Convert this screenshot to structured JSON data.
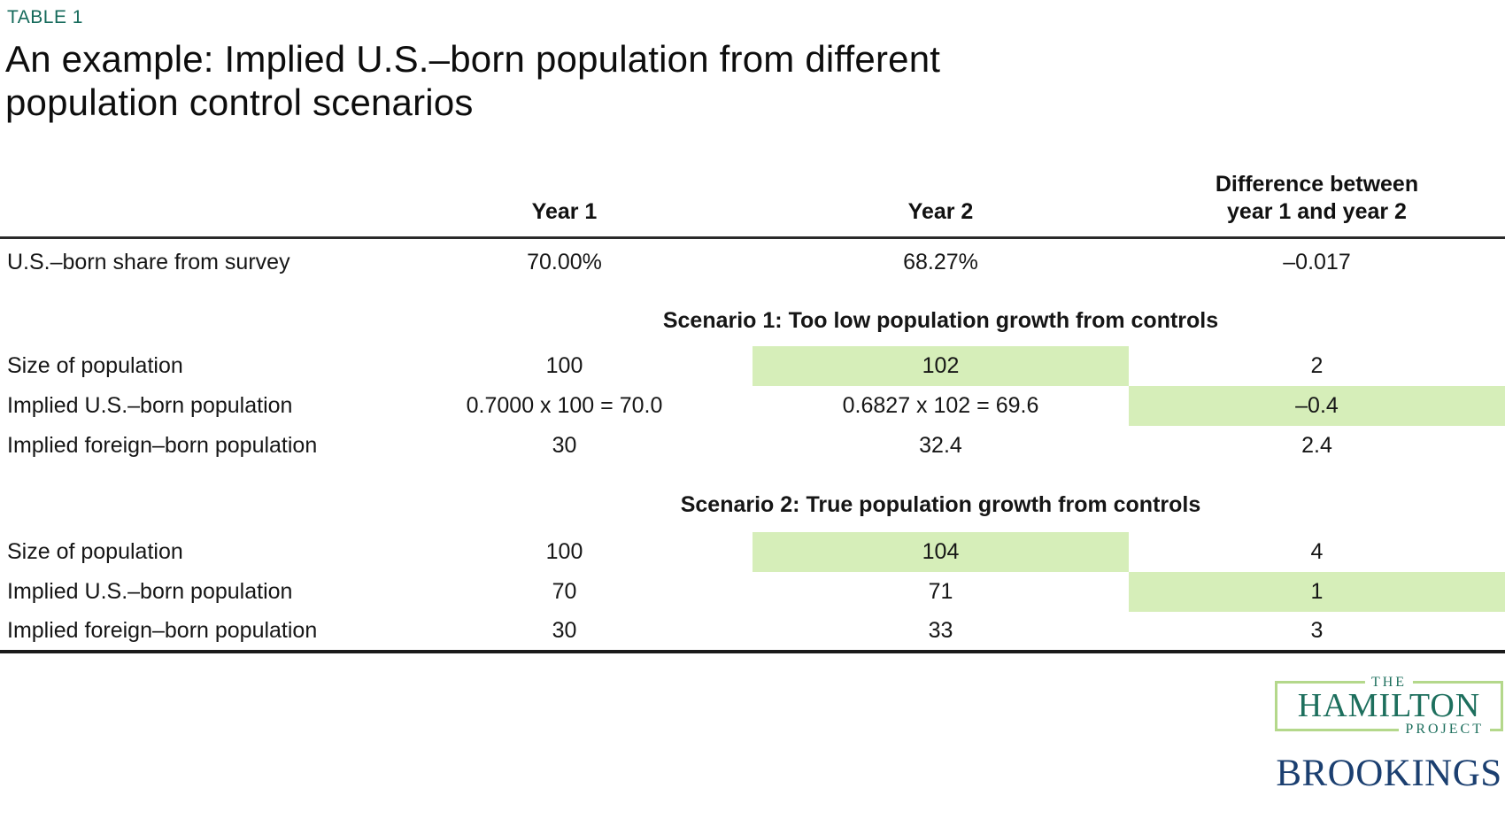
{
  "kicker": "TABLE 1",
  "title": {
    "line1": "An example: Implied U.S.–born population from different",
    "line2": "population control scenarios"
  },
  "chart_data": {
    "type": "table",
    "title": "An example: Implied U.S.–born population from different population control scenarios",
    "header": {
      "year1": "Year 1",
      "year2": "Year 2",
      "diff_line1": "Difference between",
      "diff_line2": "year 1 and year 2"
    },
    "intro_row": {
      "label": "U.S.–born share from survey",
      "year1": "70.00%",
      "year2": "68.27%",
      "diff": "–0.017"
    },
    "sections": [
      {
        "heading": "Scenario 1: Too low population growth from controls",
        "rows": [
          {
            "label": "Size of population",
            "year1": "100",
            "year2": "102",
            "diff": "2",
            "highlight": "year2"
          },
          {
            "label": "Implied U.S.–born population",
            "year1": "0.7000 x 100 = 70.0",
            "year2": "0.6827 x 102 = 69.6",
            "diff": "–0.4",
            "highlight": "diff"
          },
          {
            "label": "Implied foreign–born population",
            "year1": "30",
            "year2": "32.4",
            "diff": "2.4",
            "highlight": "none"
          }
        ]
      },
      {
        "heading": "Scenario 2: True population growth from controls",
        "rows": [
          {
            "label": "Size of population",
            "year1": "100",
            "year2": "104",
            "diff": "4",
            "highlight": "year2"
          },
          {
            "label": "Implied U.S.–born population",
            "year1": "70",
            "year2": "71",
            "diff": "1",
            "highlight": "diff"
          },
          {
            "label": "Implied foreign–born population",
            "year1": "30",
            "year2": "33",
            "diff": "3",
            "highlight": "none"
          }
        ]
      }
    ],
    "highlight_color": "#d6eeb9",
    "layout": {
      "columns_equal_width": 4,
      "grid": "off",
      "section_headings_span": "columns 2-4"
    }
  },
  "branding": {
    "hamilton": {
      "the": "THE",
      "name": "HAMILTON",
      "project": "PROJECT"
    },
    "brookings": "BROOKINGS"
  },
  "colors": {
    "kicker_teal": "#156a5b",
    "highlight_green": "#d6eeb9",
    "hamilton_teal": "#1d6f5d",
    "hamilton_border_green": "#b4d88b",
    "brookings_navy": "#1b3f70",
    "header_rule": "#2a2a2a",
    "bottom_rule": "#1a1a1a",
    "text": "#141414"
  }
}
